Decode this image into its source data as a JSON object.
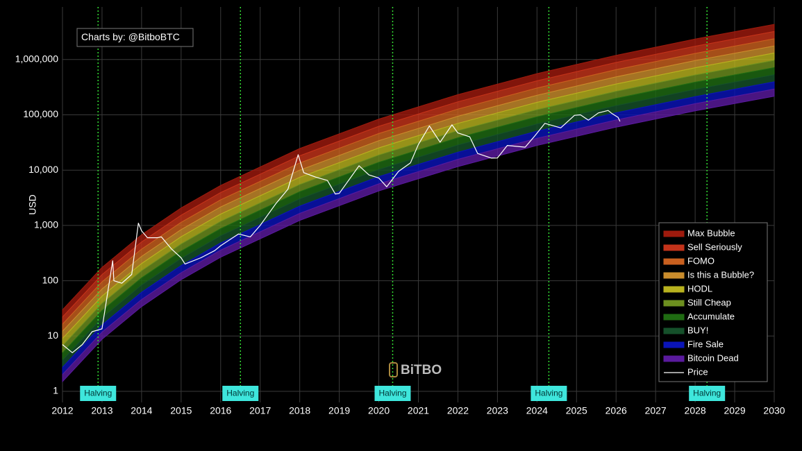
{
  "chart_data": {
    "type": "rainbow",
    "source_note": "Charts by: @BitboBTC",
    "watermark": "BiTBO",
    "y_label": "USD",
    "log_y": true,
    "grid": true,
    "legend_position": "bottom-right",
    "xlim": [
      2012,
      2030
    ],
    "xticks": [
      2012,
      2013,
      2014,
      2015,
      2016,
      2017,
      2018,
      2019,
      2020,
      2021,
      2022,
      2023,
      2024,
      2025,
      2026,
      2027,
      2028,
      2029,
      2030
    ],
    "ylim": [
      0.63,
      8930000
    ],
    "yticks": [
      1,
      10,
      100,
      {
        "value": 1000,
        "label": "1,000"
      },
      {
        "value": 10000,
        "label": "10,000"
      },
      {
        "value": 100000,
        "label": "100,000"
      },
      {
        "value": 1000000,
        "label": "1,000,000"
      }
    ],
    "halvings": [
      {
        "x": 2012.9,
        "label": "Halving"
      },
      {
        "x": 2016.5,
        "label": "Halving"
      },
      {
        "x": 2020.35,
        "label": "Halving"
      },
      {
        "x": 2024.3,
        "label": "Halving"
      },
      {
        "x": 2028.3,
        "label": "Halving"
      }
    ],
    "x": [
      2012,
      2013,
      2014,
      2015,
      2016,
      2018,
      2020,
      2022,
      2024,
      2026,
      2028,
      2030
    ],
    "series": [
      {
        "name": "Max Bubble",
        "color": "#9e1a0d",
        "values": [
          29.8,
          174,
          678,
          2070,
          5300,
          24600,
          83800,
          232000,
          556000,
          1190000,
          2350000,
          4320000
        ]
      },
      {
        "name": "Sell Seriously",
        "color": "#c4331a",
        "values": [
          22.1,
          129,
          503,
          1530,
          3930,
          18200,
          62100,
          172000,
          412000,
          885000,
          1740000,
          3210000
        ]
      },
      {
        "name": "FOMO",
        "color": "#c9601f",
        "values": [
          16.4,
          95.7,
          373,
          1140,
          2910,
          13500,
          46000,
          127000,
          305000,
          656000,
          1290000,
          2380000
        ]
      },
      {
        "name": "Is this a Bubble?",
        "color": "#c98c2c",
        "values": [
          12.2,
          71,
          276,
          841,
          2160,
          10000,
          34100,
          94400,
          226000,
          486000,
          957000,
          1760000
        ]
      },
      {
        "name": "HODL",
        "color": "#b8b21e",
        "values": [
          9.01,
          52.6,
          205,
          624,
          1600,
          7430,
          25300,
          70000,
          168000,
          361000,
          710000,
          1310000
        ]
      },
      {
        "name": "Still Cheap",
        "color": "#6d8f1f",
        "values": [
          6.68,
          39,
          152,
          462,
          1190,
          5510,
          18800,
          51900,
          124000,
          267000,
          526000,
          968000
        ]
      },
      {
        "name": "Accumulate",
        "color": "#1f6b12",
        "values": [
          4.95,
          28.9,
          113,
          343,
          879,
          4080,
          13900,
          38500,
          92200,
          198000,
          390000,
          718000
        ]
      },
      {
        "name": "BUY!",
        "color": "#15502a",
        "values": [
          3.67,
          21.4,
          83.5,
          254,
          652,
          3030,
          10300,
          28500,
          68400,
          147000,
          289000,
          532000
        ]
      },
      {
        "name": "Fire Sale",
        "color": "#0a14b8",
        "values": [
          2.72,
          15.9,
          61.9,
          188,
          483,
          2240,
          7640,
          21100,
          50700,
          109000,
          214000,
          395000
        ]
      },
      {
        "name": "Bitcoin Dead",
        "color": "#5a1a9e",
        "values": [
          2.02,
          11.8,
          45.9,
          140,
          358,
          1660,
          5660,
          15700,
          37600,
          80700,
          159000,
          292000
        ],
        "low": [
          1.5,
          8.73,
          34,
          104,
          266,
          1230,
          4200,
          11600,
          27900,
          59800,
          118000,
          217000
        ]
      },
      {
        "name": "Price",
        "color": "#ffffff",
        "x": [
          2012.0,
          2012.25,
          2012.5,
          2012.75,
          2013.0,
          2013.27,
          2013.3,
          2013.5,
          2013.75,
          2013.92,
          2014.0,
          2014.15,
          2014.4,
          2014.5,
          2014.75,
          2015.0,
          2015.1,
          2015.5,
          2015.85,
          2016.0,
          2016.45,
          2016.75,
          2017.0,
          2017.4,
          2017.7,
          2017.96,
          2018.1,
          2018.4,
          2018.7,
          2018.9,
          2019.0,
          2019.5,
          2019.75,
          2020.0,
          2020.2,
          2020.5,
          2020.8,
          2021.0,
          2021.28,
          2021.55,
          2021.85,
          2022.0,
          2022.3,
          2022.5,
          2022.85,
          2023.0,
          2023.25,
          2023.7,
          2023.95,
          2024.2,
          2024.6,
          2024.95,
          2025.1,
          2025.3,
          2025.55,
          2025.8,
          2025.9,
          2026.05,
          2026.1
        ],
        "values": [
          7,
          5,
          7,
          12,
          13.5,
          230,
          100,
          90,
          130,
          1100,
          800,
          600,
          600,
          620,
          380,
          260,
          200,
          260,
          350,
          430,
          700,
          620,
          1000,
          2500,
          4500,
          19000,
          9000,
          7500,
          6500,
          3700,
          3800,
          12000,
          8200,
          7200,
          5000,
          9500,
          13500,
          29000,
          63000,
          32000,
          66000,
          47000,
          40000,
          20000,
          16500,
          16600,
          28000,
          26000,
          42000,
          70000,
          58000,
          98000,
          100000,
          80000,
          108000,
          120000,
          105000,
          90000,
          76000
        ]
      }
    ]
  }
}
